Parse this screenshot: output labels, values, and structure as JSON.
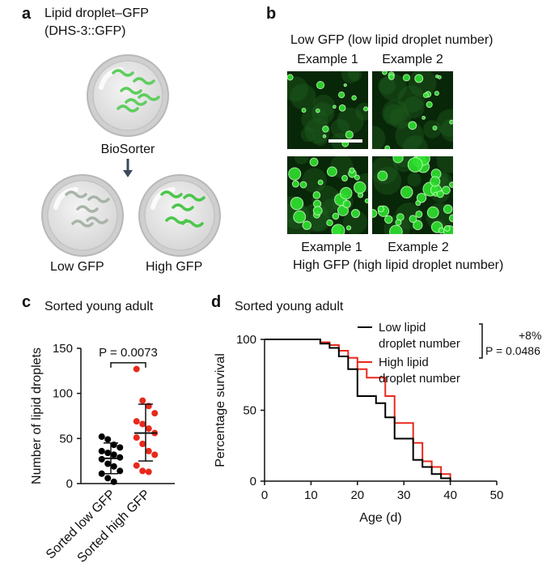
{
  "panel_a": {
    "label": "a",
    "title_line1": "Lipid droplet–GFP",
    "title_line2": "(DHS-3::GFP)",
    "sorter": "BioSorter",
    "low": "Low GFP",
    "high": "High GFP"
  },
  "panel_b": {
    "label": "b",
    "top_title": "Low GFP (low lipid droplet number)",
    "top_ex1": "Example 1",
    "top_ex2": "Example 2",
    "bottom_ex1": "Example 1",
    "bottom_ex2": "Example 2",
    "bottom_title": "High GFP (high lipid droplet number)"
  },
  "panel_c": {
    "label": "c",
    "title": "Sorted young adult",
    "p_value": "P = 0.0073"
  },
  "panel_d": {
    "label": "d",
    "title": "Sorted young adult",
    "stat_pct": "+8%",
    "stat_p": "P = 0.0486"
  },
  "colors": {
    "low": "#000000",
    "high": "#e8291c",
    "gfp": "#3df53d"
  },
  "chart_data": [
    {
      "type": "scatter",
      "categories": [
        "Sorted low GFP",
        "Sorted high GFP"
      ],
      "ylabel": "Number of lipid droplets",
      "ylim": [
        0,
        150
      ],
      "yticks": [
        0,
        50,
        100,
        150
      ],
      "series": [
        {
          "name": "Sorted low GFP",
          "color": "#000000",
          "values": [
            52,
            49,
            43,
            40,
            36,
            34,
            32,
            29,
            27,
            22,
            19,
            14,
            11,
            6,
            2
          ],
          "mean": 28,
          "sd_low": 11,
          "sd_high": 45
        },
        {
          "name": "Sorted high GFP",
          "color": "#e8291c",
          "values": [
            127,
            92,
            86,
            78,
            69,
            66,
            61,
            56,
            51,
            44,
            36,
            32,
            20,
            14,
            13
          ],
          "mean": 56,
          "sd_low": 25,
          "sd_high": 88
        }
      ],
      "annotation": "P = 0.0073"
    },
    {
      "type": "line",
      "xlabel": "Age (d)",
      "ylabel": "Percentage survival",
      "xlim": [
        0,
        50
      ],
      "ylim": [
        0,
        100
      ],
      "xticks": [
        0,
        10,
        20,
        30,
        40,
        50
      ],
      "yticks": [
        0,
        50,
        100
      ],
      "series": [
        {
          "name": "Low lipid droplet number",
          "color": "#000000",
          "x": [
            0,
            12,
            14,
            16,
            18,
            20,
            22,
            24,
            26,
            28,
            32,
            34,
            36,
            38,
            40
          ],
          "y": [
            100,
            97,
            94,
            88,
            79,
            60,
            60,
            55,
            45,
            30,
            15,
            10,
            5,
            2,
            0
          ]
        },
        {
          "name": "High lipid droplet number",
          "color": "#e8291c",
          "x": [
            0,
            12,
            14,
            16,
            18,
            20,
            22,
            24,
            26,
            28,
            32,
            34,
            36,
            38,
            40
          ],
          "y": [
            100,
            98,
            96,
            92,
            87,
            79,
            73,
            73,
            60,
            41,
            27,
            14,
            10,
            5,
            2
          ]
        }
      ]
    }
  ]
}
